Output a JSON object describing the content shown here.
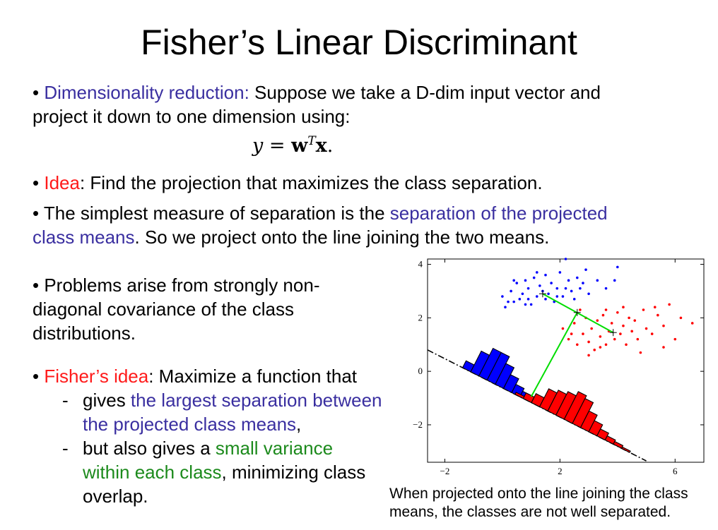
{
  "slide": {
    "title": "Fisher’s Linear Discriminant",
    "b1": {
      "bullet": "•",
      "lead": "Dimensionality reduction:",
      "text1": " Suppose we take a D-dim input vector and",
      "text2": "project it down to one dimension using:"
    },
    "equation": {
      "lhs": "y",
      "eq": " = ",
      "w": "w",
      "sup": "T",
      "x": "x",
      "end": "."
    },
    "b2": {
      "bullet": "•",
      "lead": "Idea",
      "text": ": Find the projection that maximizes the class separation."
    },
    "b3": {
      "bullet": "•",
      "text1": " The simplest measure of separation is the ",
      "purple1": "separation of the projected",
      "purple2": "class means",
      "text2": ". So we project onto the line joining the two means."
    },
    "b4": {
      "bullet": "•",
      "line1": " Problems arise from strongly non-",
      "line2": "diagonal covariance of the class",
      "line3": "distributions."
    },
    "b5": {
      "bullet": "•",
      "lead": "Fisher’s idea",
      "text": ": Maximize a function that",
      "sub1": {
        "dash": "-",
        "text": "gives ",
        "purple1": "the largest separation between",
        "purple2": "the projected class means",
        "end": ","
      },
      "sub2": {
        "dash": "-",
        "text": "but also gives a ",
        "green1": "small variance",
        "green2": "within each class",
        "text2": ", minimizing class",
        "text3": "overlap."
      }
    },
    "caption": {
      "line1": "When projected onto the line joining the class",
      "line2": "means, the classes are not well separated."
    }
  },
  "chart_data": {
    "type": "scatter",
    "title": "",
    "xlabel": "",
    "ylabel": "",
    "xlim": [
      -2.6,
      7.0
    ],
    "ylim": [
      -3.4,
      4.2
    ],
    "x_ticks": [
      "−2",
      "2",
      "6"
    ],
    "x_tick_values": [
      -2,
      2,
      6
    ],
    "y_ticks": [
      "4",
      "2",
      "0",
      "−2"
    ],
    "y_tick_values": [
      4,
      2,
      0,
      -2
    ],
    "grid": false,
    "colors": {
      "class1": "#0000ff",
      "class2": "#ff0000",
      "projection": "#00dd00",
      "axis_line": "#000000"
    },
    "class1_mean": [
      1.4,
      2.9
    ],
    "class2_mean": [
      3.85,
      1.45
    ],
    "mean_link_midpoint": [
      2.6,
      2.2
    ],
    "midpoint_projection": [
      1.0,
      -0.95
    ],
    "projection_line": {
      "from": [
        -2.6,
        0.8
      ],
      "to": [
        5.0,
        -3.35
      ]
    },
    "class1_points": [
      [
        0.0,
        2.8
      ],
      [
        0.2,
        2.6
      ],
      [
        0.3,
        3.0
      ],
      [
        0.5,
        3.3
      ],
      [
        0.6,
        2.7
      ],
      [
        0.7,
        2.9
      ],
      [
        0.8,
        3.4
      ],
      [
        0.9,
        3.1
      ],
      [
        1.0,
        2.5
      ],
      [
        1.1,
        3.5
      ],
      [
        1.2,
        2.8
      ],
      [
        1.3,
        3.2
      ],
      [
        1.5,
        3.6
      ],
      [
        1.6,
        2.9
      ],
      [
        1.7,
        3.3
      ],
      [
        1.8,
        2.6
      ],
      [
        1.9,
        3.1
      ],
      [
        2.0,
        3.7
      ],
      [
        2.1,
        2.8
      ],
      [
        2.3,
        3.4
      ],
      [
        2.4,
        3.0
      ],
      [
        2.6,
        3.5
      ],
      [
        2.7,
        3.1
      ],
      [
        2.9,
        3.8
      ],
      [
        3.0,
        2.9
      ],
      [
        3.3,
        3.4
      ],
      [
        3.6,
        3.1
      ],
      [
        2.2,
        4.2
      ],
      [
        0.1,
        2.4
      ],
      [
        0.4,
        2.6
      ],
      [
        0.9,
        2.7
      ],
      [
        1.4,
        3.0
      ],
      [
        1.5,
        2.7
      ],
      [
        1.9,
        2.8
      ],
      [
        2.2,
        3.1
      ],
      [
        0.8,
        2.5
      ],
      [
        0.4,
        3.4
      ],
      [
        1.2,
        3.7
      ],
      [
        2.5,
        2.7
      ],
      [
        2.8,
        3.3
      ],
      [
        4.0,
        3.9
      ],
      [
        3.9,
        3.4
      ]
    ],
    "class2_points": [
      [
        2.1,
        1.6
      ],
      [
        2.3,
        1.2
      ],
      [
        2.5,
        1.8
      ],
      [
        2.6,
        1.0
      ],
      [
        2.8,
        1.4
      ],
      [
        2.9,
        2.0
      ],
      [
        3.0,
        1.1
      ],
      [
        3.1,
        1.6
      ],
      [
        3.2,
        0.8
      ],
      [
        3.3,
        1.9
      ],
      [
        3.4,
        1.3
      ],
      [
        3.5,
        2.1
      ],
      [
        3.6,
        1.0
      ],
      [
        3.7,
        1.5
      ],
      [
        3.8,
        1.8
      ],
      [
        3.9,
        1.2
      ],
      [
        4.0,
        2.2
      ],
      [
        4.1,
        1.4
      ],
      [
        4.2,
        1.7
      ],
      [
        4.3,
        1.0
      ],
      [
        4.4,
        2.0
      ],
      [
        4.5,
        1.5
      ],
      [
        4.6,
        1.9
      ],
      [
        4.7,
        1.2
      ],
      [
        4.9,
        2.3
      ],
      [
        5.0,
        1.6
      ],
      [
        5.2,
        1.4
      ],
      [
        5.4,
        2.1
      ],
      [
        5.6,
        1.7
      ],
      [
        5.8,
        2.5
      ],
      [
        6.0,
        1.2
      ],
      [
        6.2,
        2.0
      ],
      [
        5.6,
        0.9
      ],
      [
        4.8,
        0.7
      ],
      [
        3.0,
        0.6
      ],
      [
        2.7,
        2.3
      ],
      [
        3.4,
        0.9
      ],
      [
        4.2,
        2.4
      ],
      [
        5.3,
        2.4
      ],
      [
        6.6,
        1.8
      ],
      [
        2.4,
        1.4
      ],
      [
        3.6,
        2.3
      ]
    ],
    "class1_histogram": [
      1,
      3,
      4,
      4,
      3,
      2,
      1.2,
      0.8,
      0.6
    ],
    "class2_histogram": [
      0.3,
      0.8,
      1.3,
      2.6,
      3.0,
      3.4,
      4.0,
      3.6,
      2.4,
      1.6,
      1.0,
      0.6,
      0.4,
      0.2
    ]
  }
}
